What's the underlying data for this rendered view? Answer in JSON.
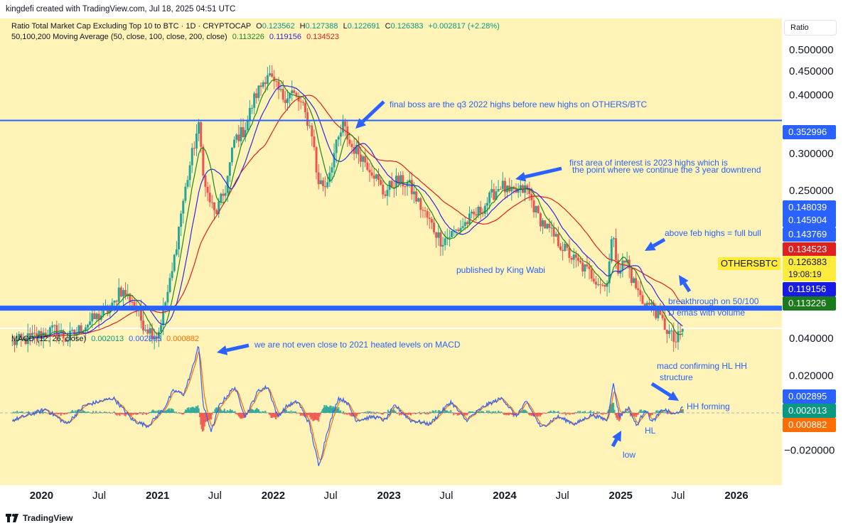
{
  "header": {
    "credit": "kingdefi created with TradingView.com, Jul 18, 2025 04:51 UTC"
  },
  "legend": {
    "symbol": "Ratio Total Market Cap Excluding Top 10 to BTC · 1D · CRYPTOCAP",
    "o_label": "O",
    "o": "0.123562",
    "h_label": "H",
    "h": "0.127388",
    "l_label": "L",
    "l": "0.122691",
    "c_label": "C",
    "c": "0.126383",
    "chg": "+0.002817 (+2.28%)",
    "ma_label": "50,100,200 Moving Average (50, close, 100, close, 200, close)",
    "ma50": "0.113226",
    "ma100": "0.119156",
    "ma200": "0.134523",
    "macd_label": "MACD (12, 26, close)",
    "macd_hist": "0.002013",
    "macd_line": "0.002895",
    "macd_signal": "0.000882"
  },
  "scale_button": "Ratio",
  "annotations": {
    "final_boss": "final boss are the q3 2022 highs before new highs on OTHERS/BTC",
    "first_area_1": "first area of interest is 2023 highs which is",
    "first_area_2": "the point where we continue the 3 year downtrend",
    "above_feb": "above feb highs = full bull",
    "published": "published by King Wabi",
    "breakthrough_1": "breakthrough on 50/100",
    "breakthrough_2": "D emas with volume",
    "not_close": "we are not even close to 2021 heated levels on MACD",
    "macd_confirm_1": "macd confirming HL HH",
    "macd_confirm_2": "structure",
    "hh_forming": "HH forming",
    "hl": "HL",
    "low": "low"
  },
  "price_tags": {
    "t1": "0.148039",
    "t2": "0.145904",
    "t3": "0.143769",
    "ma200": "0.134523",
    "symbol": "OTHERSBTC",
    "last": "0.126383",
    "countdown": "19:08:19",
    "ma100": "0.119156",
    "ma50": "0.113226",
    "hline": "0.352996",
    "macd_line": "0.002895",
    "macd_hist": "0.002013",
    "macd_signal": "0.000882"
  },
  "colors": {
    "bg": "#fff3b8",
    "up": "#26a69a",
    "down": "#ef5350",
    "ma50": "#1b8a1b",
    "ma100": "#2a2ae0",
    "ma200": "#e02020",
    "hline": "#2962ff",
    "macd": "#2962ff",
    "signal": "#ff6d00"
  },
  "footer": {
    "brand": "TradingView"
  },
  "chart_data": [
    {
      "type": "line",
      "title": "Ratio Total Market Cap Excluding Top 10 to BTC · 1D · CRYPTOCAP",
      "y_ticks": [
        "0.500000",
        "0.450000",
        "0.400000",
        "0.300000",
        "0.250000"
      ],
      "x_ticks": [
        "2020",
        "Jul",
        "2021",
        "Jul",
        "2022",
        "Jul",
        "2023",
        "Jul",
        "2024",
        "Jul",
        "2025",
        "Jul",
        "2026"
      ],
      "price_anchors": [
        [
          "2019-10-01",
          0.118
        ],
        [
          "2019-12-01",
          0.121
        ],
        [
          "2020-02-15",
          0.126
        ],
        [
          "2020-03-20",
          0.12
        ],
        [
          "2020-06-01",
          0.131
        ],
        [
          "2020-08-15",
          0.141
        ],
        [
          "2020-09-01",
          0.154
        ],
        [
          "2020-10-15",
          0.145
        ],
        [
          "2020-11-15",
          0.13
        ],
        [
          "2020-12-10",
          0.125
        ],
        [
          "2021-01-01",
          0.122
        ],
        [
          "2021-02-15",
          0.165
        ],
        [
          "2021-03-15",
          0.222
        ],
        [
          "2021-04-15",
          0.288
        ],
        [
          "2021-05-10",
          0.345
        ],
        [
          "2021-06-01",
          0.252
        ],
        [
          "2021-07-01",
          0.222
        ],
        [
          "2021-08-01",
          0.248
        ],
        [
          "2021-09-01",
          0.322
        ],
        [
          "2021-10-01",
          0.336
        ],
        [
          "2021-11-01",
          0.392
        ],
        [
          "2021-12-15",
          0.448
        ],
        [
          "2022-01-01",
          0.422
        ],
        [
          "2022-02-01",
          0.396
        ],
        [
          "2022-03-01",
          0.405
        ],
        [
          "2022-04-01",
          0.38
        ],
        [
          "2022-05-05",
          0.33
        ],
        [
          "2022-05-20",
          0.262
        ],
        [
          "2022-06-15",
          0.256
        ],
        [
          "2022-07-15",
          0.305
        ],
        [
          "2022-08-10",
          0.345
        ],
        [
          "2022-09-01",
          0.312
        ],
        [
          "2022-10-01",
          0.3
        ],
        [
          "2022-11-15",
          0.272
        ],
        [
          "2022-12-15",
          0.246
        ],
        [
          "2023-01-20",
          0.262
        ],
        [
          "2023-03-01",
          0.259
        ],
        [
          "2023-04-15",
          0.228
        ],
        [
          "2023-06-15",
          0.195
        ],
        [
          "2023-08-01",
          0.205
        ],
        [
          "2023-10-15",
          0.226
        ],
        [
          "2023-12-20",
          0.258
        ],
        [
          "2024-01-15",
          0.245
        ],
        [
          "2024-03-10",
          0.252
        ],
        [
          "2024-04-15",
          0.22
        ],
        [
          "2024-06-01",
          0.2
        ],
        [
          "2024-08-05",
          0.178
        ],
        [
          "2024-10-01",
          0.165
        ],
        [
          "2024-11-15",
          0.155
        ],
        [
          "2024-12-05",
          0.2
        ],
        [
          "2024-12-25",
          0.17
        ],
        [
          "2025-01-20",
          0.177
        ],
        [
          "2025-02-05",
          0.162
        ],
        [
          "2025-03-10",
          0.145
        ],
        [
          "2025-04-15",
          0.14
        ],
        [
          "2025-06-22",
          0.118
        ],
        [
          "2025-07-18",
          0.126383
        ]
      ],
      "ma_last": {
        "ma50": 0.113226,
        "ma100": 0.119156,
        "ma200": 0.134523
      },
      "horizontal_lines": [
        0.352996,
        0.14
      ],
      "legend_position": "top-left"
    },
    {
      "type": "line",
      "title": "MACD (12, 26, close)",
      "y_ticks": [
        "0.040000",
        "0.020000",
        "-0.020000"
      ],
      "macd_anchors": [
        [
          "2019-10-01",
          -0.004
        ],
        [
          "2020-01-15",
          0.002
        ],
        [
          "2020-03-20",
          -0.006
        ],
        [
          "2020-05-15",
          0.004
        ],
        [
          "2020-08-15",
          0.008
        ],
        [
          "2020-10-15",
          -0.004
        ],
        [
          "2020-12-01",
          -0.007
        ],
        [
          "2021-01-20",
          0.002
        ],
        [
          "2021-02-20",
          0.012
        ],
        [
          "2021-03-25",
          0.01
        ],
        [
          "2021-04-25",
          0.026
        ],
        [
          "2021-05-10",
          0.037
        ],
        [
          "2021-05-25",
          0.004
        ],
        [
          "2021-06-20",
          -0.01
        ],
        [
          "2021-07-15",
          0.004
        ],
        [
          "2021-09-01",
          0.014
        ],
        [
          "2021-10-05",
          -0.002
        ],
        [
          "2021-11-15",
          0.012
        ],
        [
          "2021-12-15",
          0.014
        ],
        [
          "2022-01-15",
          -0.002
        ],
        [
          "2022-02-15",
          0.004
        ],
        [
          "2022-03-20",
          0.006
        ],
        [
          "2022-04-25",
          -0.006
        ],
        [
          "2022-05-25",
          -0.029
        ],
        [
          "2022-06-20",
          -0.01
        ],
        [
          "2022-07-25",
          0.008
        ],
        [
          "2022-08-20",
          0.006
        ],
        [
          "2022-09-20",
          -0.004
        ],
        [
          "2022-11-15",
          -0.002
        ],
        [
          "2022-12-20",
          -0.004
        ],
        [
          "2023-01-20",
          0.004
        ],
        [
          "2023-03-10",
          -0.004
        ],
        [
          "2023-05-10",
          -0.006
        ],
        [
          "2023-07-15",
          0.006
        ],
        [
          "2023-09-01",
          -0.004
        ],
        [
          "2023-11-01",
          0.004
        ],
        [
          "2023-12-25",
          0.008
        ],
        [
          "2024-02-05",
          -0.002
        ],
        [
          "2024-03-10",
          0.006
        ],
        [
          "2024-04-25",
          -0.008
        ],
        [
          "2024-06-15",
          -0.002
        ],
        [
          "2024-08-10",
          -0.006
        ],
        [
          "2024-10-01",
          -0.001
        ],
        [
          "2024-11-20",
          -0.004
        ],
        [
          "2024-12-08",
          0.016
        ],
        [
          "2024-12-28",
          -0.002
        ],
        [
          "2025-01-25",
          0.003
        ],
        [
          "2025-02-20",
          -0.007
        ],
        [
          "2025-03-20",
          0.002
        ],
        [
          "2025-04-10",
          -0.005
        ],
        [
          "2025-05-15",
          0.002
        ],
        [
          "2025-06-20",
          -0.001
        ],
        [
          "2025-07-18",
          0.002895
        ]
      ],
      "last": {
        "macd": 0.002895,
        "signal": 0.000882,
        "hist": 0.002013
      }
    }
  ]
}
